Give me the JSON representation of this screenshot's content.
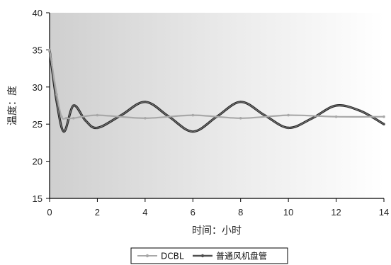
{
  "chart_data": {
    "type": "line",
    "title": "",
    "xlabel": "时间：小时",
    "ylabel": "温度：度",
    "xlim": [
      0,
      14
    ],
    "ylim": [
      15,
      40
    ],
    "x_ticks": [
      "0",
      "2",
      "4",
      "6",
      "8",
      "10",
      "12",
      "14"
    ],
    "y_ticks": [
      "15",
      "20",
      "25",
      "30",
      "35",
      "40"
    ],
    "grid": false,
    "legend_position": "bottom",
    "series": [
      {
        "name": "DCBL",
        "color": "#a8a8a8",
        "x": [
          0,
          0.3,
          0.5,
          0.7,
          1,
          2,
          4,
          6,
          8,
          10,
          12,
          14
        ],
        "y": [
          35,
          29,
          26,
          25.8,
          25.8,
          26.2,
          25.8,
          26.2,
          25.8,
          26.2,
          26,
          26
        ]
      },
      {
        "name": "普通风机盘管",
        "color": "#505050",
        "x": [
          0,
          0.3,
          0.6,
          1,
          1.5,
          2,
          3,
          4,
          5,
          6,
          7,
          8,
          9,
          10,
          11,
          12,
          13,
          14
        ],
        "y": [
          35,
          28,
          24,
          27.5,
          25.5,
          24.5,
          26.2,
          28,
          26,
          24,
          26,
          28,
          26.2,
          24.5,
          25.8,
          27.5,
          26.8,
          25
        ]
      }
    ]
  }
}
